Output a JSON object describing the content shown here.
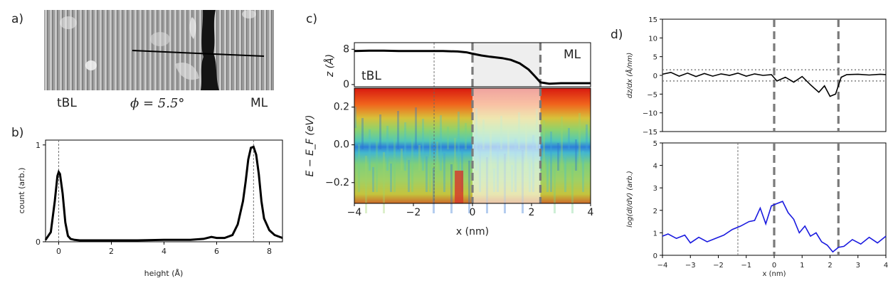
{
  "figure": {
    "panel_labels": [
      "a)",
      "b)",
      "c)",
      "d)"
    ],
    "panel_a": {
      "left_label": "tBL",
      "right_label": "ML",
      "angle_label": "ϕ = 5.5°"
    },
    "panel_c": {
      "tbl_label": "tBL",
      "ml_label": "ML",
      "z_ylabel": "z (Å)",
      "e_ylabel": "E − E_F (eV)",
      "xlabel": "x (nm)"
    },
    "panel_d": {
      "top_ylabel": "dz/dx (Å/nm)",
      "bottom_ylabel": "log(dI/dV) (arb.)",
      "xlabel": "x (nm)"
    }
  },
  "chart_data": [
    {
      "id": "b",
      "type": "line",
      "title": "",
      "xlabel": "height (Å)",
      "ylabel": "count (arb.)",
      "xlim": [
        -0.5,
        8.5
      ],
      "ylim": [
        0,
        1.05
      ],
      "xticks": [
        "0",
        "2",
        "4",
        "6",
        "8"
      ],
      "yticks": [
        "0",
        "1"
      ],
      "vlines": [
        0,
        7.4
      ],
      "x": [
        -0.5,
        -0.3,
        -0.15,
        -0.05,
        0,
        0.05,
        0.15,
        0.25,
        0.35,
        0.45,
        0.6,
        0.8,
        1,
        2,
        3,
        4,
        5,
        5.5,
        5.8,
        6,
        6.3,
        6.6,
        6.8,
        7,
        7.1,
        7.2,
        7.3,
        7.4,
        7.5,
        7.6,
        7.7,
        7.8,
        8,
        8.2,
        8.5
      ],
      "y": [
        0.02,
        0.1,
        0.42,
        0.68,
        0.72,
        0.7,
        0.5,
        0.2,
        0.06,
        0.03,
        0.02,
        0.015,
        0.015,
        0.015,
        0.015,
        0.02,
        0.02,
        0.03,
        0.05,
        0.04,
        0.04,
        0.07,
        0.18,
        0.42,
        0.62,
        0.85,
        0.97,
        0.98,
        0.9,
        0.7,
        0.42,
        0.24,
        0.12,
        0.07,
        0.04
      ]
    },
    {
      "id": "c-top",
      "type": "line",
      "title": "",
      "xlabel": "",
      "ylabel": "z (Å)",
      "xlim": [
        -4,
        4
      ],
      "ylim": [
        -0.5,
        9.5
      ],
      "yticks": [
        "0",
        "8"
      ],
      "vlines_thin": [
        -1.3
      ],
      "vlines_thick": [
        0,
        2.3
      ],
      "x": [
        -4,
        -3.5,
        -3,
        -2.5,
        -2,
        -1.5,
        -1,
        -0.5,
        -0.2,
        0,
        0.3,
        0.6,
        1,
        1.3,
        1.6,
        1.9,
        2.1,
        2.3,
        2.6,
        3,
        3.5,
        4
      ],
      "y": [
        7.6,
        7.7,
        7.7,
        7.6,
        7.6,
        7.6,
        7.6,
        7.5,
        7.3,
        7.0,
        6.6,
        6.3,
        6.0,
        5.6,
        4.8,
        3.4,
        2,
        0.5,
        0.2,
        0.3,
        0.3,
        0.3
      ]
    },
    {
      "id": "c-map",
      "type": "heatmap",
      "title": "",
      "xlabel": "x (nm)",
      "ylabel": "E − E_F (eV)",
      "xlim": [
        -4,
        4
      ],
      "ylim": [
        -0.31,
        0.3
      ],
      "xticks": [
        "−4",
        "−2",
        "0",
        "2",
        "4"
      ],
      "yticks": [
        "−0.2",
        "0.0",
        "0.2"
      ],
      "shaded_region": [
        0,
        2.3
      ],
      "vlines_thin": [
        -1.3
      ],
      "vlines_thick": [
        0,
        2.3
      ]
    },
    {
      "id": "d-top",
      "type": "line",
      "title": "",
      "xlabel": "",
      "ylabel": "dz/dx (Å/nm)",
      "xlim": [
        -4,
        4
      ],
      "ylim": [
        -15,
        15
      ],
      "yticks": [
        "−15",
        "−10",
        "−5",
        "0",
        "5",
        "10",
        "15"
      ],
      "hlines_dotted": [
        1.5,
        -1.5
      ],
      "vlines_thick": [
        0,
        2.3
      ],
      "x": [
        -4,
        -3.7,
        -3.4,
        -3.1,
        -2.8,
        -2.5,
        -2.2,
        -1.9,
        -1.6,
        -1.3,
        -1.0,
        -0.7,
        -0.4,
        -0.1,
        0.1,
        0.4,
        0.7,
        1.0,
        1.3,
        1.6,
        1.8,
        2.0,
        2.2,
        2.4,
        2.6,
        3.0,
        3.4,
        3.8,
        4
      ],
      "y": [
        0.3,
        0.8,
        -0.2,
        0.6,
        -0.3,
        0.5,
        -0.2,
        0.4,
        0,
        0.6,
        -0.2,
        0.4,
        0,
        0.2,
        -1.5,
        -0.5,
        -1.8,
        -0.3,
        -2.5,
        -4.5,
        -2.8,
        -5.6,
        -5,
        -0.5,
        0.2,
        0.3,
        0.1,
        0.3,
        0.2
      ]
    },
    {
      "id": "d-bottom",
      "type": "line",
      "title": "",
      "xlabel": "x (nm)",
      "ylabel": "log(dI/dV) (arb.)",
      "xlim": [
        -4,
        4
      ],
      "ylim": [
        0,
        5
      ],
      "xticks": [
        "−4",
        "−3",
        "−2",
        "−1",
        "0",
        "1",
        "2",
        "3",
        "4"
      ],
      "yticks": [
        "0",
        "1",
        "2",
        "3",
        "4",
        "5"
      ],
      "vlines_thin": [
        -1.3
      ],
      "vlines_thick": [
        0,
        2.3
      ],
      "x": [
        -4,
        -3.8,
        -3.5,
        -3.2,
        -3,
        -2.7,
        -2.4,
        -2.1,
        -1.8,
        -1.5,
        -1.2,
        -0.9,
        -0.7,
        -0.5,
        -0.3,
        -0.1,
        0.1,
        0.3,
        0.5,
        0.7,
        0.9,
        1.1,
        1.3,
        1.5,
        1.7,
        1.9,
        2.1,
        2.3,
        2.5,
        2.8,
        3.1,
        3.4,
        3.7,
        4
      ],
      "y": [
        0.85,
        0.95,
        0.75,
        0.9,
        0.55,
        0.8,
        0.6,
        0.75,
        0.9,
        1.15,
        1.3,
        1.5,
        1.55,
        2.1,
        1.4,
        2.2,
        2.3,
        2.4,
        1.9,
        1.6,
        1.0,
        1.3,
        0.85,
        1.0,
        0.6,
        0.45,
        0.15,
        0.35,
        0.4,
        0.7,
        0.5,
        0.8,
        0.55,
        0.85
      ]
    }
  ]
}
